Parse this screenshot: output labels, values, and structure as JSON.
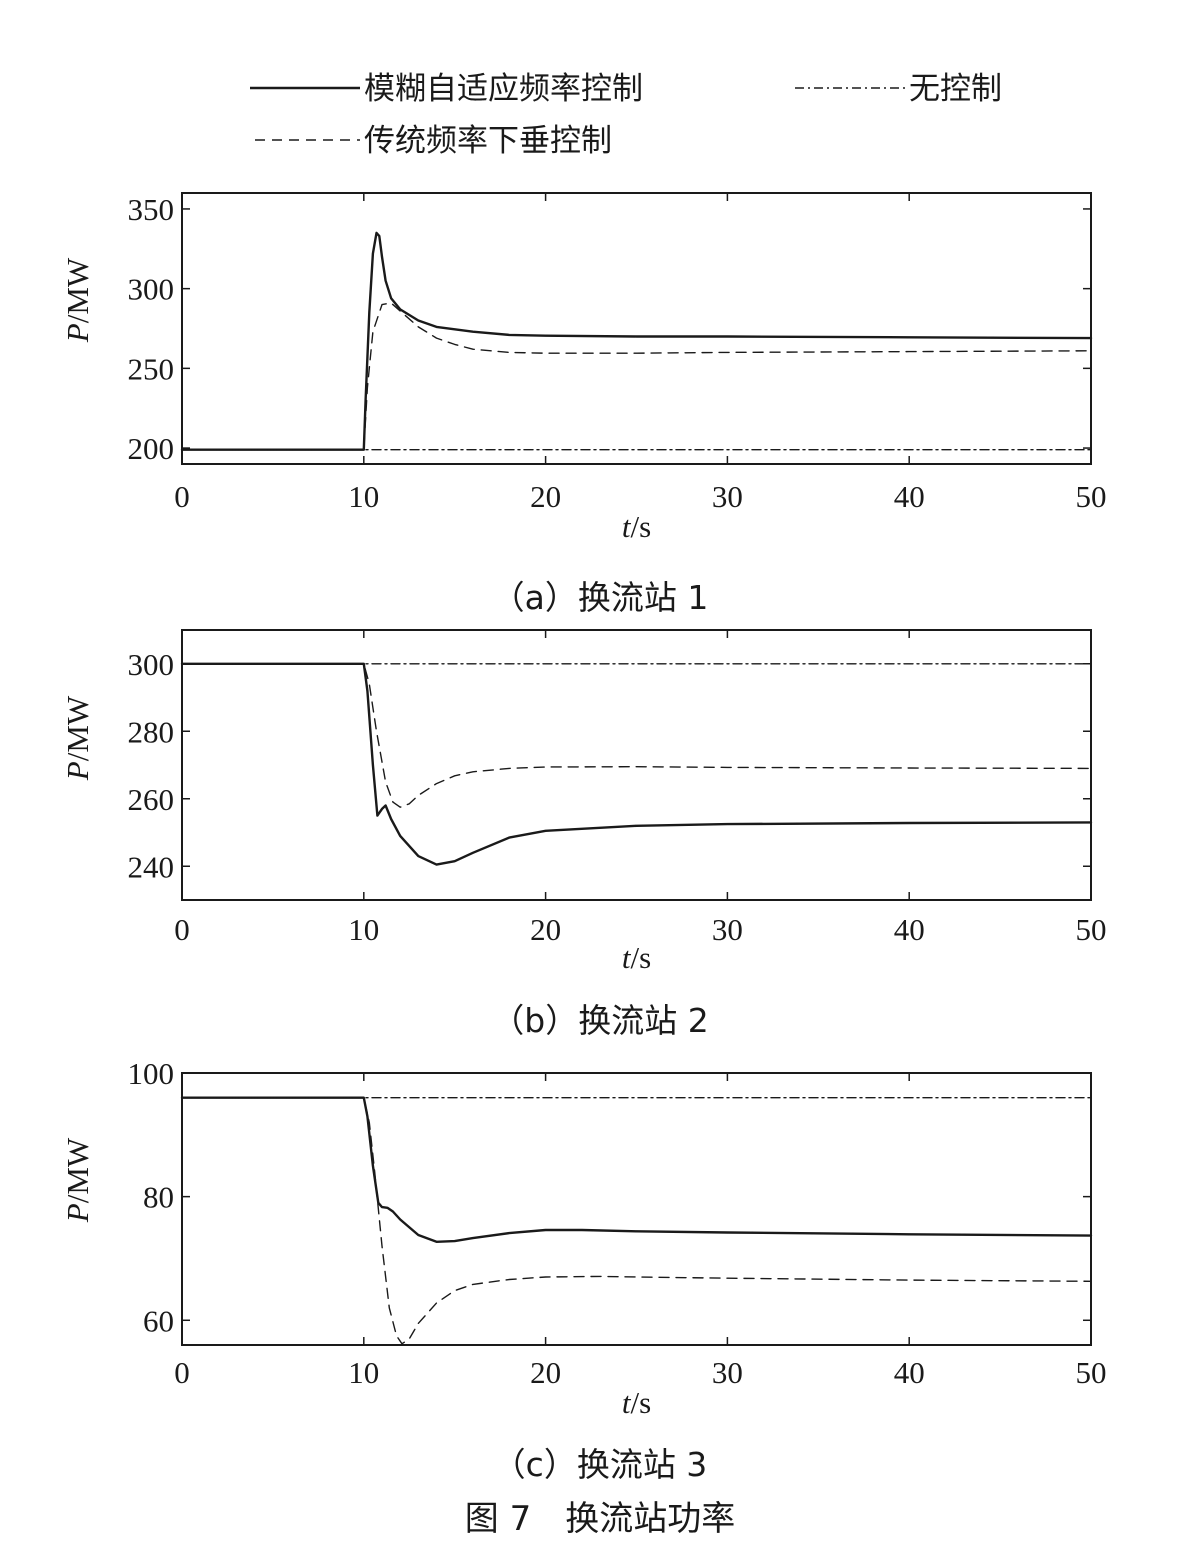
{
  "legend": [
    {
      "label": "模糊自适应频率控制",
      "style": "solid"
    },
    {
      "label": "无控制",
      "style": "dashdot"
    },
    {
      "label": "传统频率下垂控制",
      "style": "dashed"
    }
  ],
  "figure_caption": "图 7　换流站功率",
  "chart_data": [
    {
      "type": "line",
      "caption": "（a）换流站 1",
      "xlabel": "t/s",
      "ylabel": "P/MW",
      "xlim": [
        0,
        50
      ],
      "ylim": [
        190,
        360
      ],
      "xticks": [
        0,
        10,
        20,
        30,
        40,
        50
      ],
      "yticks": [
        200,
        250,
        300,
        350
      ],
      "grid": false,
      "series": [
        {
          "name": "模糊自适应频率控制",
          "style": "solid",
          "x": [
            0,
            10,
            10.1,
            10.3,
            10.5,
            10.7,
            10.85,
            11.0,
            11.2,
            11.5,
            12,
            13,
            14,
            16,
            18,
            20,
            25,
            30,
            40,
            50
          ],
          "y": [
            199,
            199,
            230,
            285,
            322,
            335,
            333,
            320,
            305,
            294,
            287,
            280,
            276,
            273,
            271,
            270.5,
            270,
            270,
            269.5,
            269
          ]
        },
        {
          "name": "传统频率下垂控制",
          "style": "dashed",
          "x": [
            0,
            10,
            10.2,
            10.5,
            11.0,
            11.5,
            12,
            13,
            14,
            15,
            16,
            18,
            20,
            25,
            30,
            40,
            50
          ],
          "y": [
            199,
            199,
            238,
            273,
            290,
            291,
            286,
            276,
            269,
            265,
            262,
            260,
            259.5,
            259.5,
            260,
            260.5,
            261
          ]
        },
        {
          "name": "无控制",
          "style": "dashdot",
          "x": [
            0,
            50
          ],
          "y": [
            199,
            199
          ]
        }
      ]
    },
    {
      "type": "line",
      "caption": "（b）换流站 2",
      "xlabel": "t/s",
      "ylabel": "P/MW",
      "xlim": [
        0,
        50
      ],
      "ylim": [
        230,
        310
      ],
      "xticks": [
        0,
        10,
        20,
        30,
        40,
        50
      ],
      "yticks": [
        240,
        260,
        280,
        300
      ],
      "grid": false,
      "series": [
        {
          "name": "模糊自适应频率控制",
          "style": "solid",
          "x": [
            0,
            10,
            10.2,
            10.5,
            10.75,
            11.0,
            11.2,
            11.5,
            12,
            13,
            14,
            15,
            16,
            18,
            20,
            25,
            30,
            40,
            50
          ],
          "y": [
            300,
            300,
            292,
            270,
            255,
            257,
            258,
            254,
            249,
            243,
            240.5,
            241.5,
            244,
            248.5,
            250.5,
            252,
            252.5,
            252.8,
            253
          ]
        },
        {
          "name": "传统频率下垂控制",
          "style": "dashed",
          "x": [
            0,
            10,
            10.3,
            10.7,
            11.2,
            11.6,
            12,
            12.5,
            13,
            14,
            15,
            16,
            18,
            20,
            25,
            30,
            40,
            50
          ],
          "y": [
            300,
            300,
            294,
            280,
            265,
            259,
            257.5,
            258.5,
            261,
            264.5,
            266.8,
            268,
            269,
            269.4,
            269.5,
            269.3,
            269.1,
            269
          ]
        },
        {
          "name": "无控制",
          "style": "dashdot",
          "x": [
            0,
            50
          ],
          "y": [
            300,
            300
          ]
        }
      ]
    },
    {
      "type": "line",
      "caption": "（c）换流站 3",
      "xlabel": "t/s",
      "ylabel": "P/MW",
      "xlim": [
        0,
        50
      ],
      "ylim": [
        56,
        100
      ],
      "xticks": [
        0,
        10,
        20,
        30,
        40,
        50
      ],
      "yticks": [
        60,
        80,
        100
      ],
      "grid": false,
      "series": [
        {
          "name": "模糊自适应频率控制",
          "style": "solid",
          "x": [
            0,
            10,
            10.2,
            10.5,
            10.8,
            11.0,
            11.3,
            11.6,
            12,
            13,
            14,
            15,
            16,
            18,
            20,
            22,
            25,
            30,
            40,
            50
          ],
          "y": [
            96,
            96,
            93,
            85,
            79,
            78.3,
            78.2,
            77.6,
            76.3,
            73.8,
            72.7,
            72.8,
            73.3,
            74.1,
            74.6,
            74.6,
            74.4,
            74.2,
            73.9,
            73.7
          ]
        },
        {
          "name": "传统频率下垂控制",
          "style": "dashed",
          "x": [
            0,
            10,
            10.3,
            10.6,
            11.0,
            11.4,
            11.8,
            12.1,
            12.5,
            13,
            14,
            15,
            16,
            18,
            20,
            23,
            25,
            30,
            40,
            50
          ],
          "y": [
            96,
            96,
            92,
            84,
            72,
            62,
            57.5,
            56.2,
            57,
            59.5,
            62.8,
            64.8,
            65.8,
            66.6,
            67,
            67.1,
            67,
            66.8,
            66.5,
            66.3
          ]
        },
        {
          "name": "无控制",
          "style": "dashdot",
          "x": [
            0,
            50
          ],
          "y": [
            96,
            96
          ]
        }
      ]
    }
  ]
}
